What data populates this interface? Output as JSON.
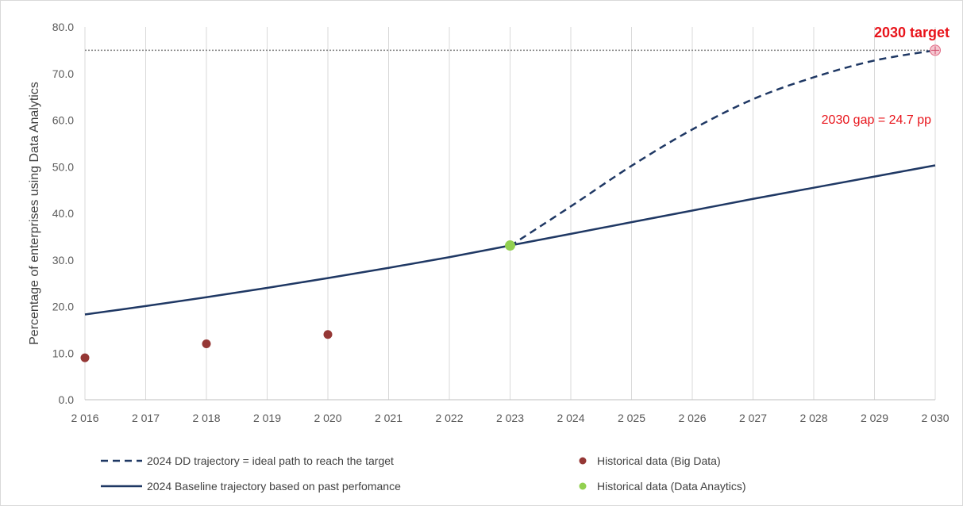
{
  "chart_data": {
    "type": "line",
    "title": "",
    "xlabel": "",
    "ylabel": "Percentage of enterprises using Data Analytics",
    "xlim": [
      2016,
      2030
    ],
    "ylim": [
      0,
      80
    ],
    "x_ticks": [
      2016,
      2017,
      2018,
      2019,
      2020,
      2021,
      2022,
      2023,
      2024,
      2025,
      2026,
      2027,
      2028,
      2029,
      2030
    ],
    "x_tick_labels": [
      "2 016",
      "2 017",
      "2 018",
      "2 019",
      "2 020",
      "2 021",
      "2 022",
      "2 023",
      "2 024",
      "2 025",
      "2 026",
      "2 027",
      "2 028",
      "2 029",
      "2 030"
    ],
    "y_ticks": [
      0,
      10,
      20,
      30,
      40,
      50,
      60,
      70,
      80
    ],
    "y_tick_labels": [
      "0.0",
      "10.0",
      "20.0",
      "30.0",
      "40.0",
      "50.0",
      "60.0",
      "70.0",
      "80.0"
    ],
    "grid": "vertical",
    "legend_position": "bottom",
    "target_value": 75,
    "series": [
      {
        "name": "2024 DD trajectory = ideal path to reach the target",
        "kind": "line",
        "style": "dashed",
        "color": "#1f3864",
        "x": [
          2023,
          2024,
          2025,
          2026,
          2027,
          2028,
          2029,
          2030
        ],
        "y": [
          33.0,
          41.5,
          50.2,
          58.0,
          64.5,
          69.2,
          72.8,
          75.0
        ]
      },
      {
        "name": "2024 Baseline trajectory based on past perfomance",
        "kind": "line",
        "style": "solid",
        "color": "#1f3864",
        "x": [
          2016,
          2017,
          2018,
          2019,
          2020,
          2021,
          2022,
          2023,
          2024,
          2025,
          2026,
          2027,
          2028,
          2029,
          2030
        ],
        "y": [
          18.3,
          20.1,
          22.0,
          24.0,
          26.1,
          28.3,
          30.6,
          33.1,
          35.6,
          38.1,
          40.6,
          43.1,
          45.5,
          47.9,
          50.3
        ]
      },
      {
        "name": "Historical data (Big Data)",
        "kind": "scatter",
        "color": "#953735",
        "x": [
          2016,
          2018,
          2020
        ],
        "y": [
          9.0,
          12.0,
          14.0
        ]
      },
      {
        "name": "Historical data (Data Anaytics)",
        "kind": "scatter",
        "color": "#92d050",
        "x": [
          2023
        ],
        "y": [
          33.1
        ]
      }
    ],
    "annotations": {
      "target_label": "2030 target",
      "gap_label": "2030 gap = 24.7 pp",
      "target_point": {
        "x": 2030,
        "y": 75.0
      }
    }
  }
}
